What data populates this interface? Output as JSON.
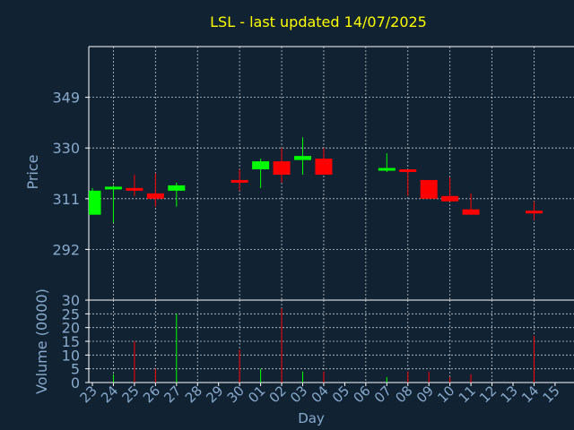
{
  "chart_data": {
    "type": "candlestick",
    "title": "LSL - last updated 14/07/2025",
    "price_panel": {
      "ylabel": "Price",
      "ylim": [
        273,
        368
      ],
      "yticks": [
        292,
        311,
        330,
        349
      ]
    },
    "volume_panel": {
      "ylabel": "Volume (0000)",
      "ylim": [
        0,
        30
      ],
      "yticks": [
        0,
        5,
        10,
        15,
        20,
        25,
        30
      ]
    },
    "xlabel": "Day",
    "x_ticks": [
      "23",
      "24",
      "25",
      "26",
      "27",
      "28",
      "29",
      "30",
      "01",
      "02",
      "03",
      "04",
      "05",
      "06",
      "07",
      "08",
      "09",
      "10",
      "11",
      "12",
      "13",
      "14",
      "15"
    ],
    "candles": [
      {
        "day": "23",
        "open": 305,
        "high": 315,
        "low": 305,
        "close": 314,
        "volume": 0
      },
      {
        "day": "24",
        "open": 314.5,
        "high": 316,
        "low": 302,
        "close": 315.5,
        "volume": 3
      },
      {
        "day": "25",
        "open": 315,
        "high": 320,
        "low": 312,
        "close": 314,
        "volume": 15
      },
      {
        "day": "26",
        "open": 313,
        "high": 320.5,
        "low": 308,
        "close": 311,
        "volume": 5
      },
      {
        "day": "27",
        "open": 314,
        "high": 317,
        "low": 308,
        "close": 316,
        "volume": 25
      },
      {
        "day": "30",
        "open": 318,
        "high": 322,
        "low": 314,
        "close": 317,
        "volume": 12
      },
      {
        "day": "01",
        "open": 322,
        "high": 326,
        "low": 315,
        "close": 325,
        "volume": 5
      },
      {
        "day": "02",
        "open": 325,
        "high": 330,
        "low": 317,
        "close": 320,
        "volume": 27
      },
      {
        "day": "03",
        "open": 325.5,
        "high": 334,
        "low": 320,
        "close": 327,
        "volume": 4
      },
      {
        "day": "04",
        "open": 326,
        "high": 330,
        "low": 320,
        "close": 320,
        "volume": 4
      },
      {
        "day": "07",
        "open": 321.5,
        "high": 328,
        "low": 321,
        "close": 322.5,
        "volume": 2
      },
      {
        "day": "08",
        "open": 322,
        "high": 322,
        "low": 312,
        "close": 321,
        "volume": 4
      },
      {
        "day": "09",
        "open": 318,
        "high": 318,
        "low": 311,
        "close": 311,
        "volume": 4
      },
      {
        "day": "10",
        "open": 312,
        "high": 319,
        "low": 310,
        "close": 310,
        "volume": 2
      },
      {
        "day": "11",
        "open": 307,
        "high": 313,
        "low": 305,
        "close": 305,
        "volume": 3
      },
      {
        "day": "14",
        "open": 306.5,
        "high": 310,
        "low": 303,
        "close": 305.5,
        "volume": 17
      }
    ],
    "grid": true,
    "colors": {
      "background": "#112233",
      "frame": "#ffffff",
      "grid": "#ffffff",
      "text": "#88aacc",
      "title": "#ffff00",
      "up": "#00ff00",
      "down": "#ff0000"
    }
  }
}
